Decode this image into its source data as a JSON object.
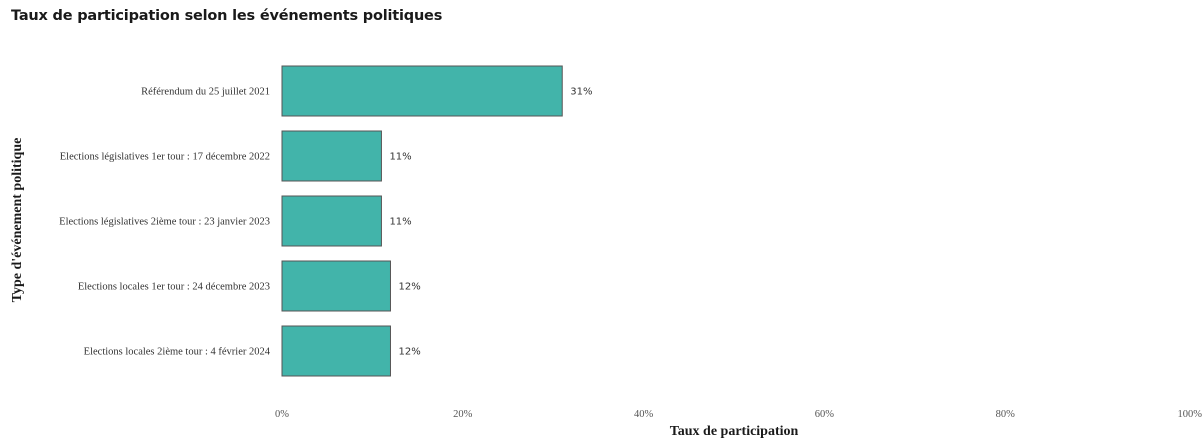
{
  "chart_data": {
    "type": "bar",
    "orientation": "horizontal",
    "title": "Taux de participation selon les événements politiques",
    "xlabel": "Taux de participation",
    "ylabel": "Type d'événement politique",
    "categories": [
      "Référendum du 25 juillet 2021",
      "Elections législatives 1er tour : 17 décembre 2022",
      "Elections législatives 2ième tour : 23 janvier 2023",
      "Elections locales 1er tour : 24 décembre 2023",
      "Elections locales 2ième tour : 4 février 2024"
    ],
    "values": [
      31,
      11,
      11,
      12,
      12
    ],
    "value_labels": [
      "31%",
      "11%",
      "11%",
      "12%",
      "12%"
    ],
    "xlim": [
      0,
      100
    ],
    "xticks": [
      "0%",
      "20%",
      "40%",
      "60%",
      "80%",
      "100%"
    ],
    "bar_color": "#42b4aa",
    "bar_edge_color": "#555555",
    "grid": false,
    "legend": "none"
  }
}
